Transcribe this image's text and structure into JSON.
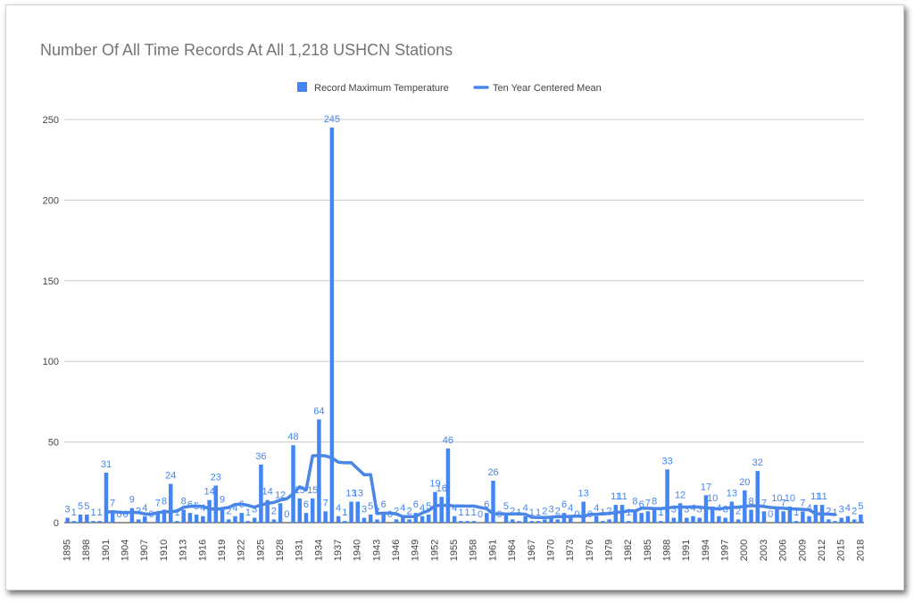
{
  "chart_data": {
    "type": "bar",
    "title": "Number Of All Time Records At All 1,218 USHCN Stations",
    "xlabel": "",
    "ylabel": "",
    "ylim": [
      0,
      250
    ],
    "yticks": [
      0,
      50,
      100,
      150,
      200,
      250
    ],
    "grid": true,
    "legend_position": "top",
    "colors": {
      "bar": "#4285f4",
      "line": "#4a86e8",
      "label": "#4285f4",
      "axis_text": "#444444",
      "grid": "#cccccc"
    },
    "x": [
      1895,
      1896,
      1897,
      1898,
      1899,
      1900,
      1901,
      1902,
      1903,
      1904,
      1905,
      1906,
      1907,
      1908,
      1909,
      1910,
      1911,
      1912,
      1913,
      1914,
      1915,
      1916,
      1917,
      1918,
      1919,
      1920,
      1921,
      1922,
      1923,
      1924,
      1925,
      1926,
      1927,
      1928,
      1929,
      1930,
      1931,
      1932,
      1933,
      1934,
      1935,
      1936,
      1937,
      1938,
      1939,
      1940,
      1941,
      1942,
      1943,
      1944,
      1945,
      1946,
      1947,
      1948,
      1949,
      1950,
      1951,
      1952,
      1953,
      1954,
      1955,
      1956,
      1957,
      1958,
      1959,
      1960,
      1961,
      1962,
      1963,
      1964,
      1965,
      1966,
      1967,
      1968,
      1969,
      1970,
      1971,
      1972,
      1973,
      1974,
      1975,
      1976,
      1977,
      1978,
      1979,
      1980,
      1981,
      1982,
      1983,
      1984,
      1985,
      1986,
      1987,
      1988,
      1989,
      1990,
      1991,
      1992,
      1993,
      1994,
      1995,
      1996,
      1997,
      1998,
      1999,
      2000,
      2001,
      2002,
      2003,
      2004,
      2005,
      2006,
      2007,
      2008,
      2009,
      2010,
      2011,
      2012,
      2013,
      2014,
      2015,
      2016,
      2017,
      2018
    ],
    "x_tick_labels": [
      "1895",
      "1898",
      "1901",
      "1904",
      "1907",
      "1910",
      "1913",
      "1916",
      "1919",
      "1922",
      "1925",
      "1928",
      "1931",
      "1934",
      "1937",
      "1940",
      "1943",
      "1946",
      "1949",
      "1952",
      "1955",
      "1958",
      "1961",
      "1964",
      "1967",
      "1970",
      "1973",
      "1976",
      "1979",
      "1982",
      "1985",
      "1988",
      "1991",
      "1994",
      "1997",
      "2000",
      "2003",
      "2006",
      "2009",
      "2012",
      "2015",
      "2018"
    ],
    "series": [
      {
        "name": "Record Maximum Temperature",
        "type": "bar",
        "values": [
          3,
          1,
          5,
          5,
          1,
          1,
          31,
          7,
          0,
          0,
          9,
          2,
          4,
          0,
          7,
          8,
          24,
          1,
          8,
          6,
          5,
          4,
          14,
          23,
          9,
          2,
          4,
          6,
          1,
          3,
          36,
          14,
          2,
          12,
          0,
          48,
          15,
          6,
          15,
          64,
          7,
          245,
          4,
          1,
          13,
          13,
          3,
          5,
          2,
          6,
          0,
          2,
          4,
          2,
          6,
          4,
          5,
          19,
          16,
          46,
          4,
          1,
          1,
          1,
          0,
          6,
          26,
          0,
          5,
          2,
          1,
          4,
          1,
          1,
          2,
          3,
          2,
          6,
          4,
          0,
          13,
          0,
          4,
          1,
          2,
          11,
          11,
          1,
          8,
          6,
          7,
          8,
          1,
          33,
          3,
          12,
          3,
          4,
          3,
          17,
          10,
          4,
          3,
          13,
          2,
          20,
          8,
          32,
          7,
          0,
          10,
          7,
          10,
          1,
          7,
          4,
          11,
          11,
          2,
          1,
          3,
          4,
          2,
          5
        ]
      },
      {
        "name": "Ten Year Centered Mean",
        "type": "line",
        "values": [
          null,
          null,
          null,
          null,
          null,
          null,
          6.5,
          6.8,
          6.4,
          6.1,
          6.4,
          6.3,
          5.4,
          5.2,
          6.2,
          6.7,
          6.7,
          7.2,
          9.5,
          10.1,
          10.3,
          10,
          8.7,
          8.2,
          8.8,
          9.4,
          11.3,
          11.5,
          10.7,
          9.6,
          11,
          11.9,
          12.5,
          14,
          14.8,
          17.9,
          22.2,
          20.2,
          41.4,
          41.6,
          41.4,
          40.1,
          37.5,
          37.1,
          37.2,
          33.4,
          29.7,
          29.7,
          5.7,
          5.9,
          5.9,
          5.4,
          3.7,
          3.7,
          3.8,
          6,
          7.5,
          10.5,
          10.7,
          10.8,
          10.3,
          10.4,
          10.2,
          10.3,
          9.4,
          8.6,
          5.5,
          5.5,
          5.3,
          5.4,
          5.5,
          5.2,
          3.3,
          3.2,
          3.2,
          3.4,
          3.8,
          3.7,
          3.9,
          4.1,
          3.8,
          5.2,
          5.1,
          5.6,
          5.6,
          6.4,
          6.4,
          7.4,
          7.2,
          8.9,
          8.9,
          8.7,
          8.7,
          9.1,
          9.6,
          9.7,
          9.6,
          9.8,
          9.6,
          9.1,
          8.8,
          8.5,
          9,
          9.4,
          9.6,
          10.1,
          10.5,
          10.4,
          10,
          9.4,
          9.1,
          8.9,
          8.6,
          8.4,
          8.2,
          7.9,
          5.5,
          5.4,
          5.3,
          5,
          null,
          null,
          null,
          null
        ]
      }
    ],
    "data_labels": [
      "3",
      "1",
      "5",
      "5",
      "1",
      "1",
      "31",
      "7",
      "0",
      "0",
      "9",
      "2",
      "4",
      "0",
      "7",
      "8",
      "24",
      "1",
      "8",
      "6",
      "5",
      "4",
      "14",
      "23",
      "9",
      "2",
      "4",
      "6",
      "1",
      "3",
      "36",
      "14",
      "2",
      "12",
      "0",
      "48",
      "15",
      "6",
      "15",
      "64",
      "7",
      "245",
      "4",
      "1",
      "13",
      "13",
      "3",
      "5",
      "2",
      "6",
      "0",
      "2",
      "4",
      "2",
      "6",
      "4",
      "5",
      "19",
      "16",
      "46",
      "4",
      "1",
      "1",
      "1",
      "0",
      "6",
      "26",
      "0",
      "5",
      "2",
      "1",
      "4",
      "1",
      "1",
      "2",
      "3",
      "2",
      "6",
      "4",
      "0",
      "13",
      "0",
      "4",
      "1",
      "2",
      "11",
      "11",
      "1",
      "8",
      "6",
      "7",
      "8",
      "1",
      "33",
      "3",
      "12",
      "3",
      "4",
      "3",
      "17",
      "10",
      "4",
      "3",
      "13",
      "2",
      "20",
      "8",
      "32",
      "7",
      "0",
      "10",
      "7",
      "10",
      "1",
      "7",
      "4",
      "11",
      "11",
      "2",
      "1",
      "3",
      "4",
      "2",
      "5"
    ]
  }
}
